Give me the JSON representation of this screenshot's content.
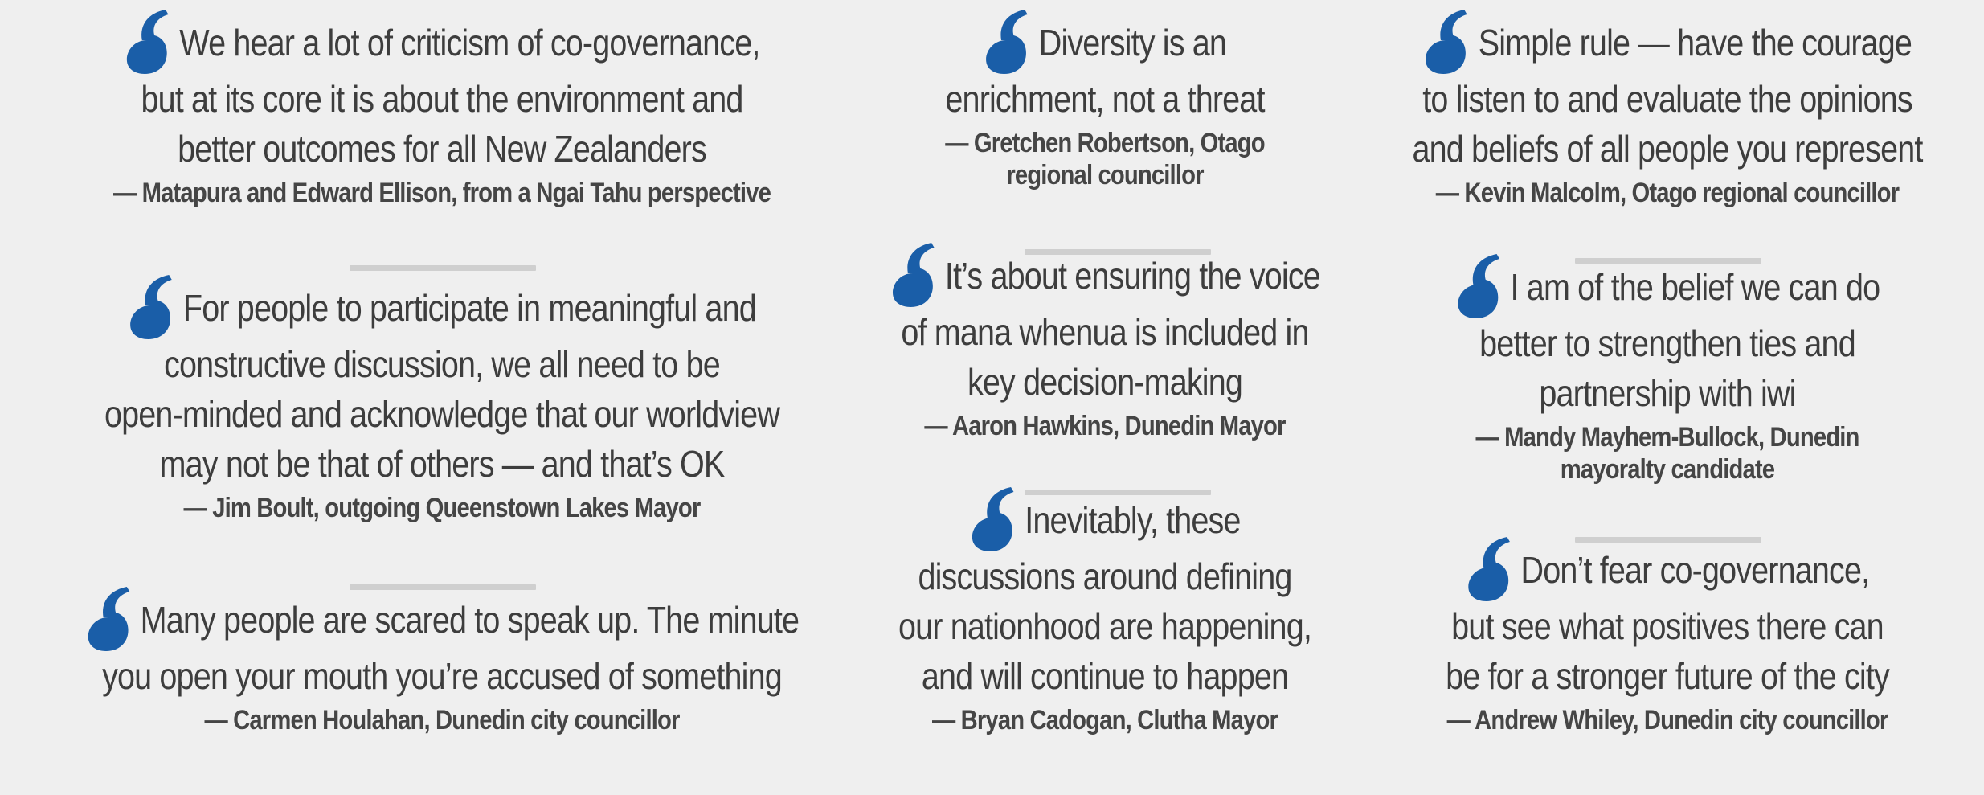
{
  "quotes": {
    "q1": {
      "text": "We hear a lot of criticism of co-governance,\nbut at its core it is about the environment and\nbetter outcomes for all New Zealanders",
      "attribution": "— Matapura and Edward Ellison, from a Ngai Tahu perspective"
    },
    "q2": {
      "text": "For people to participate in meaningful and\nconstructive discussion, we all need to be\nopen-minded and acknowledge that our worldview\nmay not be that of others — and that’s OK",
      "attribution": "— Jim Boult, outgoing Queenstown Lakes Mayor"
    },
    "q3": {
      "text": "Many people are scared to speak up. The minute\nyou open your mouth you’re accused of something",
      "attribution": "— Carmen Houlahan, Dunedin city councillor"
    },
    "q4": {
      "text": "Diversity is an\nenrichment, not a threat",
      "attribution": "— Gretchen Robertson, Otago\nregional councillor"
    },
    "q5": {
      "text": "It’s about ensuring the voice\nof mana whenua is included in\nkey decision-making",
      "attribution": "— Aaron Hawkins, Dunedin Mayor"
    },
    "q6": {
      "text": "Inevitably, these\ndiscussions around defining\nour nationhood are happening,\nand will continue to happen",
      "attribution": "— Bryan Cadogan, Clutha Mayor"
    },
    "q7": {
      "text": "Simple rule — have the courage\nto listen to and evaluate the opinions\nand beliefs of all people you represent",
      "attribution": "— Kevin Malcolm, Otago regional councillor"
    },
    "q8": {
      "text": "I am of the belief we can do\nbetter to strengthen ties and\npartnership with iwi",
      "attribution": "— Mandy Mayhem-Bullock, Dunedin\nmayoralty candidate"
    },
    "q9": {
      "text": "Don’t fear co-governance,\nbut see what positives there can\nbe for a stronger future of the city",
      "attribution": "— Andrew Whiley, Dunedin city councillor"
    }
  },
  "colors": {
    "quote_mark": "#1a5ea8",
    "background": "#efefef",
    "divider": "#cfcfcf"
  }
}
